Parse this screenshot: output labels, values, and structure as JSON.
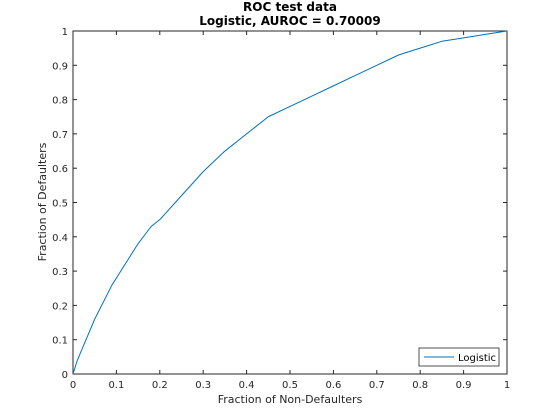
{
  "chart_data": {
    "type": "line",
    "title": "ROC test data",
    "subtitle": "Logistic, AUROC = 0.70009",
    "xlabel": "Fraction of Non-Defaulters",
    "ylabel": "Fraction of Defaulters",
    "xlim": [
      0,
      1
    ],
    "ylim": [
      0,
      1
    ],
    "xticks": [
      0,
      0.1,
      0.2,
      0.3,
      0.4,
      0.5,
      0.6,
      0.7,
      0.8,
      0.9,
      1
    ],
    "yticks": [
      0,
      0.1,
      0.2,
      0.3,
      0.4,
      0.5,
      0.6,
      0.7,
      0.8,
      0.9,
      1
    ],
    "xtick_labels": [
      "0",
      "0.1",
      "0.2",
      "0.3",
      "0.4",
      "0.5",
      "0.6",
      "0.7",
      "0.8",
      "0.9",
      "1"
    ],
    "ytick_labels": [
      "0",
      "0.1",
      "0.2",
      "0.3",
      "0.4",
      "0.5",
      "0.6",
      "0.7",
      "0.8",
      "0.9",
      "1"
    ],
    "grid": false,
    "legend_position": "bottom-right",
    "series": [
      {
        "name": "Logistic",
        "color": "#0072BD",
        "x": [
          0,
          0.01,
          0.02,
          0.03,
          0.05,
          0.07,
          0.09,
          0.1,
          0.12,
          0.15,
          0.18,
          0.2,
          0.25,
          0.3,
          0.35,
          0.4,
          0.45,
          0.5,
          0.55,
          0.6,
          0.65,
          0.7,
          0.75,
          0.8,
          0.85,
          0.9,
          0.95,
          1.0
        ],
        "y": [
          0,
          0.04,
          0.07,
          0.1,
          0.16,
          0.21,
          0.26,
          0.28,
          0.32,
          0.38,
          0.43,
          0.45,
          0.52,
          0.59,
          0.65,
          0.7,
          0.75,
          0.78,
          0.81,
          0.84,
          0.87,
          0.9,
          0.93,
          0.95,
          0.97,
          0.98,
          0.99,
          1.0
        ]
      }
    ]
  },
  "colors": {
    "axis": "#262626",
    "line": "#0072BD",
    "legend_border": "#262626"
  }
}
